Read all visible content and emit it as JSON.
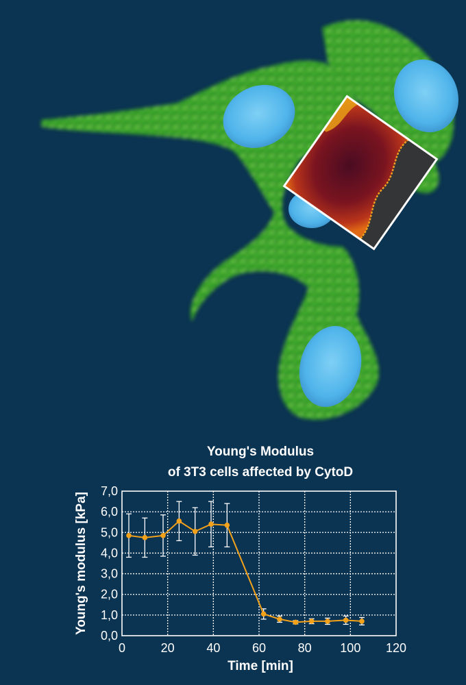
{
  "colors": {
    "background": "#0b3352",
    "series": "#f5a21b",
    "grid": "#ffffff",
    "text": "#ffffff",
    "cytoplasm": "#3fbf2a",
    "nucleus": "#4fb4ea",
    "map_frame": "#ffffff"
  },
  "image": {
    "description_icon": "fluorescence-micrograph",
    "inset": "afm-elasticity-map"
  },
  "chart_data": {
    "type": "line",
    "title_line1": "Young's Modulus",
    "title_line2": "of 3T3 cells affected by CytoD",
    "xlabel": "Time [min]",
    "ylabel": "Young's modulus [kPa]",
    "xlim": [
      0,
      120
    ],
    "ylim": [
      0,
      7
    ],
    "xticks": [
      0,
      20,
      40,
      60,
      80,
      100,
      120
    ],
    "yticks": [
      "0,0",
      "1,0",
      "2,0",
      "3,0",
      "4,0",
      "5,0",
      "6,0",
      "7,0"
    ],
    "grid": true,
    "grid_style": "dotted",
    "series": [
      {
        "x": [
          3,
          10,
          18,
          25,
          32,
          39,
          46,
          62,
          69,
          76,
          83,
          90,
          98,
          105
        ],
        "y": [
          4.85,
          4.75,
          4.85,
          5.55,
          5.05,
          5.4,
          5.35,
          1.05,
          0.8,
          0.65,
          0.7,
          0.7,
          0.75,
          0.7
        ],
        "err": [
          1.05,
          0.95,
          1.0,
          0.95,
          1.15,
          1.1,
          1.05,
          0.25,
          0.15,
          0.08,
          0.12,
          0.15,
          0.2,
          0.18
        ]
      }
    ]
  }
}
